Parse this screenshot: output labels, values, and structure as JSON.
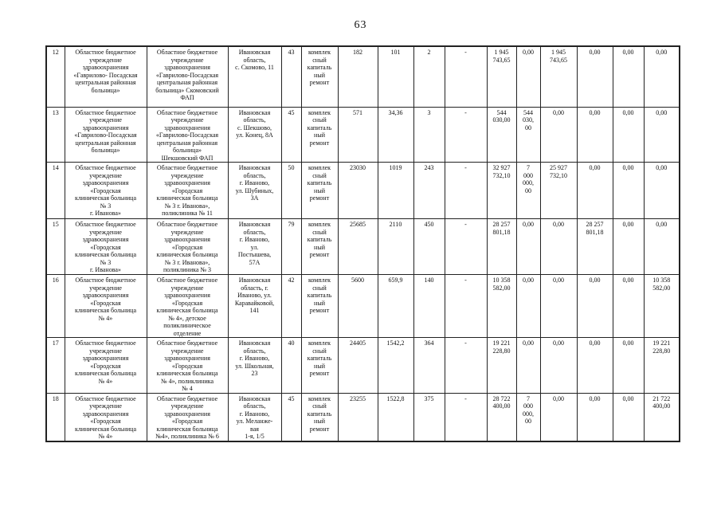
{
  "page": {
    "number": "63"
  },
  "table": {
    "columns": [
      "no",
      "institution",
      "object_name",
      "address",
      "col5",
      "work_type",
      "col7",
      "col8",
      "col9",
      "col10",
      "col11",
      "col12",
      "col13",
      "col14",
      "col15",
      "col16"
    ],
    "rows": [
      {
        "no": "12",
        "institution": "Областное бюджетное\nучреждение\nздравоохранения\n«Гаврилово- Посадская\nцентральная районная\nбольница»",
        "object_name": "Областное бюджетное\nучреждение\nздравоохранения\n«Гаврилово-Посадская\nцентральная районная\nбольница» Скомовский\nФАП",
        "address": "Ивановская\nобласть,\nс. Скомово, 11",
        "col5": "43",
        "work_type": "комплек\nсный\nкапиталь\nный\nремонт",
        "col7": "182",
        "col8": "101",
        "col9": "2",
        "col10": "-",
        "col11": "1 945\n743,65",
        "col12": "0,00",
        "col13": "1 945\n743,65",
        "col14": "0,00",
        "col15": "0,00",
        "col16": "0,00"
      },
      {
        "no": "13",
        "institution": "Областное бюджетное\nучреждение\nздравоохранения\n«Гаврилово-Посадская\nцентральная районная\nбольница»",
        "object_name": "Областное бюджетное\nучреждение\nздравоохранения\n«Гаврилово-Посадская\nцентральная районная\nбольница»\nШекшовский ФАП",
        "address": "Ивановская\nобласть,\nс. Шекшово,\nул. Конец, 8А",
        "col5": "45",
        "work_type": "комплек\nсный\nкапиталь\nный\nремонт",
        "col7": "571",
        "col8": "34,36",
        "col9": "3",
        "col10": "-",
        "col11": "544\n030,00",
        "col12": "544\n030,\n00",
        "col13": "0,00",
        "col14": "0,00",
        "col15": "0,00",
        "col16": "0,00"
      },
      {
        "no": "14",
        "institution": "Областное бюджетное\nучреждение\nздравоохранения\n«Городская\nклиническая больница\n№ 3\nг. Иванова»",
        "object_name": "Областное бюджетное\nучреждение\nздравоохранения\n«Городская\nклиническая больница\n№ 3 г. Иванова»,\nполиклиника № 11",
        "address": "Ивановская\nобласть,\nг. Иваново,\nул. Шубиных,\n3А",
        "col5": "50",
        "work_type": "комплек\nсный\nкапиталь\nный\nремонт",
        "col7": "23030",
        "col8": "1019",
        "col9": "243",
        "col10": "-",
        "col11": "32 927\n732,10",
        "col12": "7\n000\n000,\n00",
        "col13": "25 927\n732,10",
        "col14": "0,00",
        "col15": "0,00",
        "col16": "0,00"
      },
      {
        "no": "15",
        "institution": "Областное бюджетное\nучреждение\nздравоохранения\n«Городская\nклиническая больница\n№ 3\nг. Иванова»",
        "object_name": "Областное бюджетное\nучреждение\nздравоохранения\n«Городская\nклиническая больница\n№ 3 г. Иванова»,\nполиклиника № 3",
        "address": "Ивановская\nобласть,\nг. Иваново,\nул.\nПостышева,\n57А",
        "col5": "79",
        "work_type": "комплек\nсный\nкапиталь\nный\nремонт",
        "col7": "25685",
        "col8": "2110",
        "col9": "450",
        "col10": "-",
        "col11": "28 257\n801,18",
        "col12": "0,00",
        "col13": "0,00",
        "col14": "28 257\n801,18",
        "col15": "0,00",
        "col16": "0,00"
      },
      {
        "no": "16",
        "institution": "Областное бюджетное\nучреждение\nздравоохранения\n«Городская\nклиническая больница\n№ 4»",
        "object_name": "Областное бюджетное\nучреждение\nздравоохранения\n«Городская\nклиническая больница\n№ 4», детское\nполиклиническое\nотделение",
        "address": "Ивановская\nобласть, г.\nИваново, ул.\nКаравайковой,\n141",
        "col5": "42",
        "work_type": "комплек\nсный\nкапиталь\nный\nремонт",
        "col7": "5600",
        "col8": "659,9",
        "col9": "140",
        "col10": "-",
        "col11": "10 358\n582,00",
        "col12": "0,00",
        "col13": "0,00",
        "col14": "0,00",
        "col15": "0,00",
        "col16": "10 358\n582,00"
      },
      {
        "no": "17",
        "institution": "Областное бюджетное\nучреждение\nздравоохранения\n«Городская\nклиническая больница\n№ 4»",
        "object_name": "Областное бюджетное\nучреждение\nздравоохранения\n«Городская\nклиническая больница\n№ 4», поликлиника\n№ 4",
        "address": "Ивановская\nобласть,\nг. Иваново,\nул. Школьная,\n23",
        "col5": "40",
        "work_type": "комплек\nсный\nкапиталь\nный\nремонт",
        "col7": "24405",
        "col8": "1542,2",
        "col9": "364",
        "col10": "-",
        "col11": "19 221\n228,80",
        "col12": "0,00",
        "col13": "0,00",
        "col14": "0,00",
        "col15": "0,00",
        "col16": "19 221\n228,80"
      },
      {
        "no": "18",
        "institution": "Областное бюджетное\nучреждение\nздравоохранения\n«Городская\nклиническая больница\n№ 4»",
        "object_name": "Областное бюджетное\nучреждение\nздравоохранения\n«Городская\nклиническая больница\n№4», поликлиника № 6",
        "address": "Ивановская\nобласть,\nг. Иваново,\nул. Меланже-\nвая\n1-я, 1/5",
        "col5": "45",
        "work_type": "комплек\nсный\nкапиталь\nный\nремонт",
        "col7": "23255",
        "col8": "1522,8",
        "col9": "375",
        "col10": "-",
        "col11": "28 722\n400,00",
        "col12": "7\n000\n000,\n00",
        "col13": "0,00",
        "col14": "0,00",
        "col15": "0,00",
        "col16": "21 722\n400,00"
      }
    ]
  }
}
